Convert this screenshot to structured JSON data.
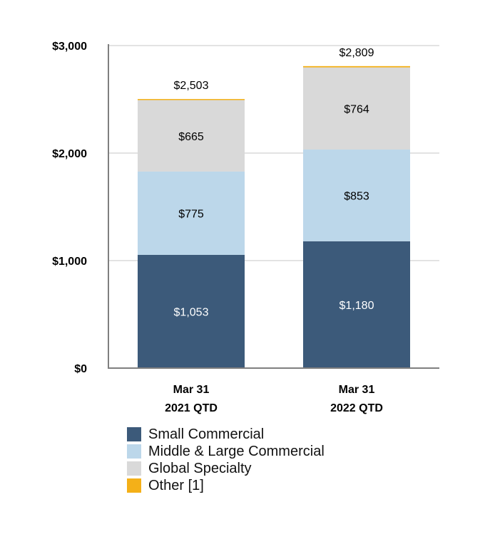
{
  "chart_data": {
    "type": "bar",
    "stacked": true,
    "categories": [
      [
        "Mar 31",
        "2021 QTD"
      ],
      [
        "Mar 31",
        "2022 QTD"
      ]
    ],
    "series": [
      {
        "name": "Small Commercial",
        "color": "#3c5a7a",
        "label_color": "#ffffff",
        "values": [
          1053,
          1180
        ],
        "labels": [
          "$1,053",
          "$1,180"
        ]
      },
      {
        "name": "Middle & Large Commercial",
        "color": "#bcd7ea",
        "label_color": "#000000",
        "values": [
          775,
          853
        ],
        "labels": [
          "$775",
          "$853"
        ]
      },
      {
        "name": "Global Specialty",
        "color": "#d9d9d9",
        "label_color": "#000000",
        "values": [
          665,
          764
        ],
        "labels": [
          "$665",
          "$764"
        ]
      },
      {
        "name": "Other [1]",
        "color": "#f4b018",
        "label_color": "#000000",
        "values": [
          10,
          12
        ],
        "labels": [
          "",
          ""
        ]
      }
    ],
    "totals": [
      "$2,503",
      "$2,809"
    ],
    "ylim": [
      0,
      3000
    ],
    "yticks": [
      0,
      1000,
      2000,
      3000
    ],
    "ytick_labels": [
      "$0",
      "$1,000",
      "$2,000",
      "$3,000"
    ],
    "grid": true,
    "legend_position": "bottom",
    "title": "",
    "xlabel": "",
    "ylabel": ""
  }
}
